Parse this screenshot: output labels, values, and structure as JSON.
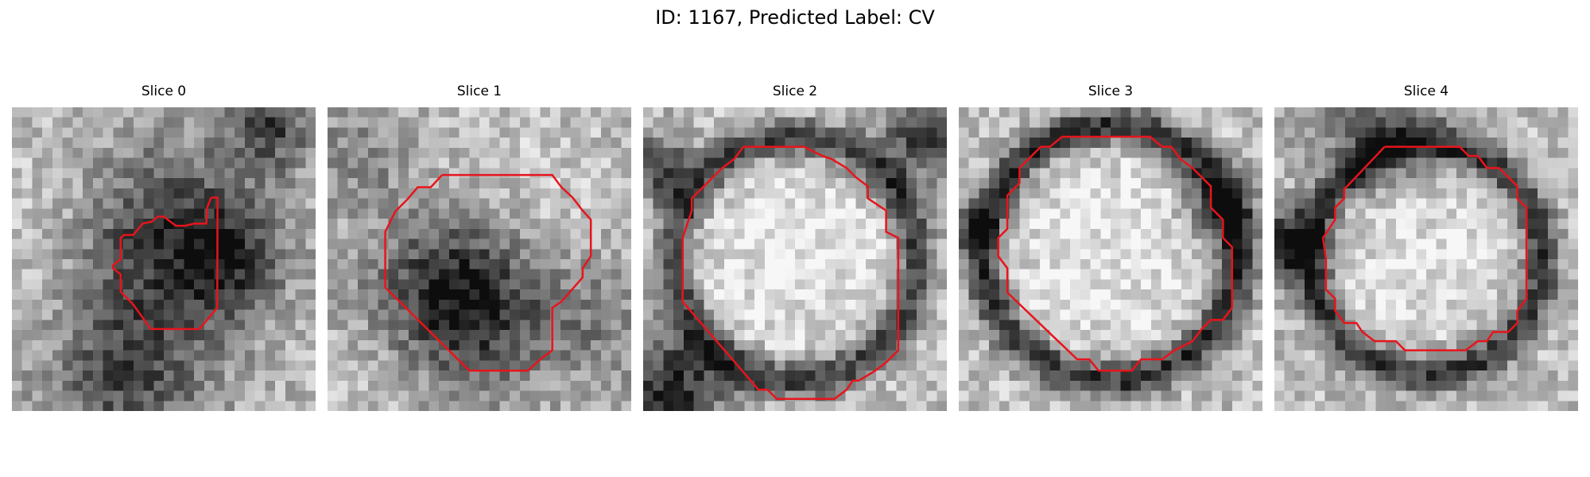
{
  "figure": {
    "title": "ID: 1167, Predicted Label: CV"
  },
  "colors": {
    "contour": "#e8141c",
    "background": "#ffffff"
  },
  "panels": [
    {
      "title": "Slice 0",
      "image": {
        "grid": 30,
        "colormap": "gray",
        "description_free": true,
        "dark_blobs": [
          [
            0.5,
            0.45,
            0.22,
            0.55
          ],
          [
            0.85,
            0.06,
            0.1,
            0.45
          ],
          [
            0.38,
            0.9,
            0.18,
            0.4
          ],
          [
            0.7,
            0.5,
            0.12,
            0.35
          ]
        ],
        "bright_blobs": [
          [
            0.15,
            0.4,
            0.2,
            0.25
          ],
          [
            0.55,
            0.55,
            0.1,
            0.2
          ]
        ],
        "seed": 11
      },
      "contour": [
        [
          0.656,
          0.297
        ],
        [
          0.677,
          0.297
        ],
        [
          0.677,
          0.317
        ],
        [
          0.676,
          0.66
        ],
        [
          0.64,
          0.703
        ],
        [
          0.617,
          0.73
        ],
        [
          0.457,
          0.73
        ],
        [
          0.4,
          0.65
        ],
        [
          0.358,
          0.607
        ],
        [
          0.358,
          0.55
        ],
        [
          0.333,
          0.53
        ],
        [
          0.333,
          0.52
        ],
        [
          0.358,
          0.5
        ],
        [
          0.358,
          0.43
        ],
        [
          0.37,
          0.42
        ],
        [
          0.4,
          0.42
        ],
        [
          0.43,
          0.383
        ],
        [
          0.46,
          0.377
        ],
        [
          0.48,
          0.36
        ],
        [
          0.5,
          0.36
        ],
        [
          0.54,
          0.39
        ],
        [
          0.57,
          0.39
        ],
        [
          0.6,
          0.383
        ],
        [
          0.64,
          0.383
        ],
        [
          0.643,
          0.33
        ],
        [
          0.656,
          0.297
        ]
      ]
    },
    {
      "title": "Slice 1",
      "image": {
        "grid": 30,
        "colormap": "gray",
        "dark_blobs": [
          [
            0.45,
            0.62,
            0.2,
            0.75
          ],
          [
            0.1,
            0.15,
            0.12,
            0.2
          ],
          [
            0.9,
            0.7,
            0.15,
            0.2
          ]
        ],
        "bright_blobs": [
          [
            0.6,
            0.4,
            0.22,
            0.35
          ],
          [
            0.2,
            0.85,
            0.15,
            0.2
          ]
        ],
        "seed": 23
      },
      "contour": [
        [
          0.377,
          0.223
        ],
        [
          0.74,
          0.223
        ],
        [
          0.77,
          0.263
        ],
        [
          0.807,
          0.297
        ],
        [
          0.84,
          0.34
        ],
        [
          0.867,
          0.37
        ],
        [
          0.867,
          0.49
        ],
        [
          0.84,
          0.53
        ],
        [
          0.84,
          0.56
        ],
        [
          0.77,
          0.64
        ],
        [
          0.74,
          0.66
        ],
        [
          0.74,
          0.8
        ],
        [
          0.7,
          0.83
        ],
        [
          0.66,
          0.867
        ],
        [
          0.6,
          0.867
        ],
        [
          0.467,
          0.867
        ],
        [
          0.19,
          0.593
        ],
        [
          0.19,
          0.41
        ],
        [
          0.223,
          0.343
        ],
        [
          0.263,
          0.303
        ],
        [
          0.297,
          0.263
        ],
        [
          0.34,
          0.263
        ],
        [
          0.377,
          0.223
        ]
      ]
    },
    {
      "title": "Slice 2",
      "image": {
        "grid": 30,
        "colormap": "gray",
        "dark_ring": [
          0.5,
          0.5,
          0.4,
          0.55
        ],
        "bright_blobs": [
          [
            0.5,
            0.48,
            0.3,
            0.4
          ]
        ],
        "dark_blobs": [
          [
            0.1,
            0.92,
            0.12,
            0.6
          ],
          [
            0.92,
            0.1,
            0.1,
            0.5
          ],
          [
            0.05,
            0.2,
            0.08,
            0.5
          ]
        ],
        "seed": 37
      },
      "contour": [
        [
          0.33,
          0.13
        ],
        [
          0.53,
          0.13
        ],
        [
          0.59,
          0.16
        ],
        [
          0.62,
          0.17
        ],
        [
          0.67,
          0.2
        ],
        [
          0.7,
          0.23
        ],
        [
          0.74,
          0.26
        ],
        [
          0.74,
          0.3
        ],
        [
          0.8,
          0.34
        ],
        [
          0.8,
          0.41
        ],
        [
          0.84,
          0.43
        ],
        [
          0.84,
          0.8
        ],
        [
          0.8,
          0.84
        ],
        [
          0.76,
          0.87
        ],
        [
          0.71,
          0.9
        ],
        [
          0.69,
          0.9
        ],
        [
          0.67,
          0.93
        ],
        [
          0.63,
          0.96
        ],
        [
          0.44,
          0.96
        ],
        [
          0.41,
          0.93
        ],
        [
          0.38,
          0.93
        ],
        [
          0.13,
          0.64
        ],
        [
          0.13,
          0.43
        ],
        [
          0.16,
          0.34
        ],
        [
          0.16,
          0.3
        ],
        [
          0.2,
          0.26
        ],
        [
          0.26,
          0.2
        ],
        [
          0.3,
          0.17
        ],
        [
          0.33,
          0.13
        ]
      ]
    },
    {
      "title": "Slice 3",
      "image": {
        "grid": 30,
        "colormap": "gray",
        "dark_ring": [
          0.5,
          0.48,
          0.42,
          0.6
        ],
        "bright_blobs": [
          [
            0.5,
            0.48,
            0.32,
            0.38
          ]
        ],
        "dark_blobs": [
          [
            0.85,
            0.33,
            0.08,
            0.5
          ],
          [
            0.05,
            0.4,
            0.06,
            0.35
          ]
        ],
        "seed": 53
      },
      "contour": [
        [
          0.34,
          0.097
        ],
        [
          0.63,
          0.097
        ],
        [
          0.67,
          0.13
        ],
        [
          0.7,
          0.13
        ],
        [
          0.73,
          0.17
        ],
        [
          0.77,
          0.2
        ],
        [
          0.83,
          0.26
        ],
        [
          0.83,
          0.33
        ],
        [
          0.87,
          0.37
        ],
        [
          0.87,
          0.43
        ],
        [
          0.9,
          0.46
        ],
        [
          0.9,
          0.66
        ],
        [
          0.87,
          0.7
        ],
        [
          0.83,
          0.7
        ],
        [
          0.8,
          0.73
        ],
        [
          0.77,
          0.77
        ],
        [
          0.71,
          0.8
        ],
        [
          0.67,
          0.83
        ],
        [
          0.6,
          0.83
        ],
        [
          0.57,
          0.867
        ],
        [
          0.5,
          0.867
        ],
        [
          0.46,
          0.867
        ],
        [
          0.43,
          0.83
        ],
        [
          0.39,
          0.83
        ],
        [
          0.16,
          0.61
        ],
        [
          0.16,
          0.53
        ],
        [
          0.13,
          0.49
        ],
        [
          0.13,
          0.43
        ],
        [
          0.16,
          0.4
        ],
        [
          0.16,
          0.29
        ],
        [
          0.2,
          0.25
        ],
        [
          0.2,
          0.2
        ],
        [
          0.23,
          0.17
        ],
        [
          0.27,
          0.13
        ],
        [
          0.3,
          0.13
        ],
        [
          0.34,
          0.097
        ]
      ]
    },
    {
      "title": "Slice 4",
      "image": {
        "grid": 30,
        "colormap": "gray",
        "dark_ring": [
          0.5,
          0.5,
          0.38,
          0.55
        ],
        "bright_blobs": [
          [
            0.5,
            0.48,
            0.28,
            0.35
          ]
        ],
        "dark_blobs": [
          [
            0.03,
            0.45,
            0.08,
            0.7
          ],
          [
            0.35,
            0.05,
            0.15,
            0.4
          ]
        ],
        "seed": 71
      },
      "contour": [
        [
          0.363,
          0.13
        ],
        [
          0.61,
          0.13
        ],
        [
          0.64,
          0.16
        ],
        [
          0.67,
          0.16
        ],
        [
          0.7,
          0.2
        ],
        [
          0.74,
          0.2
        ],
        [
          0.8,
          0.26
        ],
        [
          0.8,
          0.3
        ],
        [
          0.83,
          0.33
        ],
        [
          0.83,
          0.63
        ],
        [
          0.8,
          0.67
        ],
        [
          0.8,
          0.71
        ],
        [
          0.77,
          0.74
        ],
        [
          0.72,
          0.74
        ],
        [
          0.7,
          0.77
        ],
        [
          0.67,
          0.77
        ],
        [
          0.63,
          0.8
        ],
        [
          0.43,
          0.8
        ],
        [
          0.4,
          0.77
        ],
        [
          0.33,
          0.77
        ],
        [
          0.29,
          0.74
        ],
        [
          0.27,
          0.71
        ],
        [
          0.23,
          0.71
        ],
        [
          0.2,
          0.67
        ],
        [
          0.2,
          0.63
        ],
        [
          0.17,
          0.6
        ],
        [
          0.17,
          0.5
        ],
        [
          0.16,
          0.43
        ],
        [
          0.2,
          0.37
        ],
        [
          0.2,
          0.33
        ],
        [
          0.23,
          0.3
        ],
        [
          0.23,
          0.27
        ],
        [
          0.363,
          0.13
        ]
      ]
    }
  ]
}
